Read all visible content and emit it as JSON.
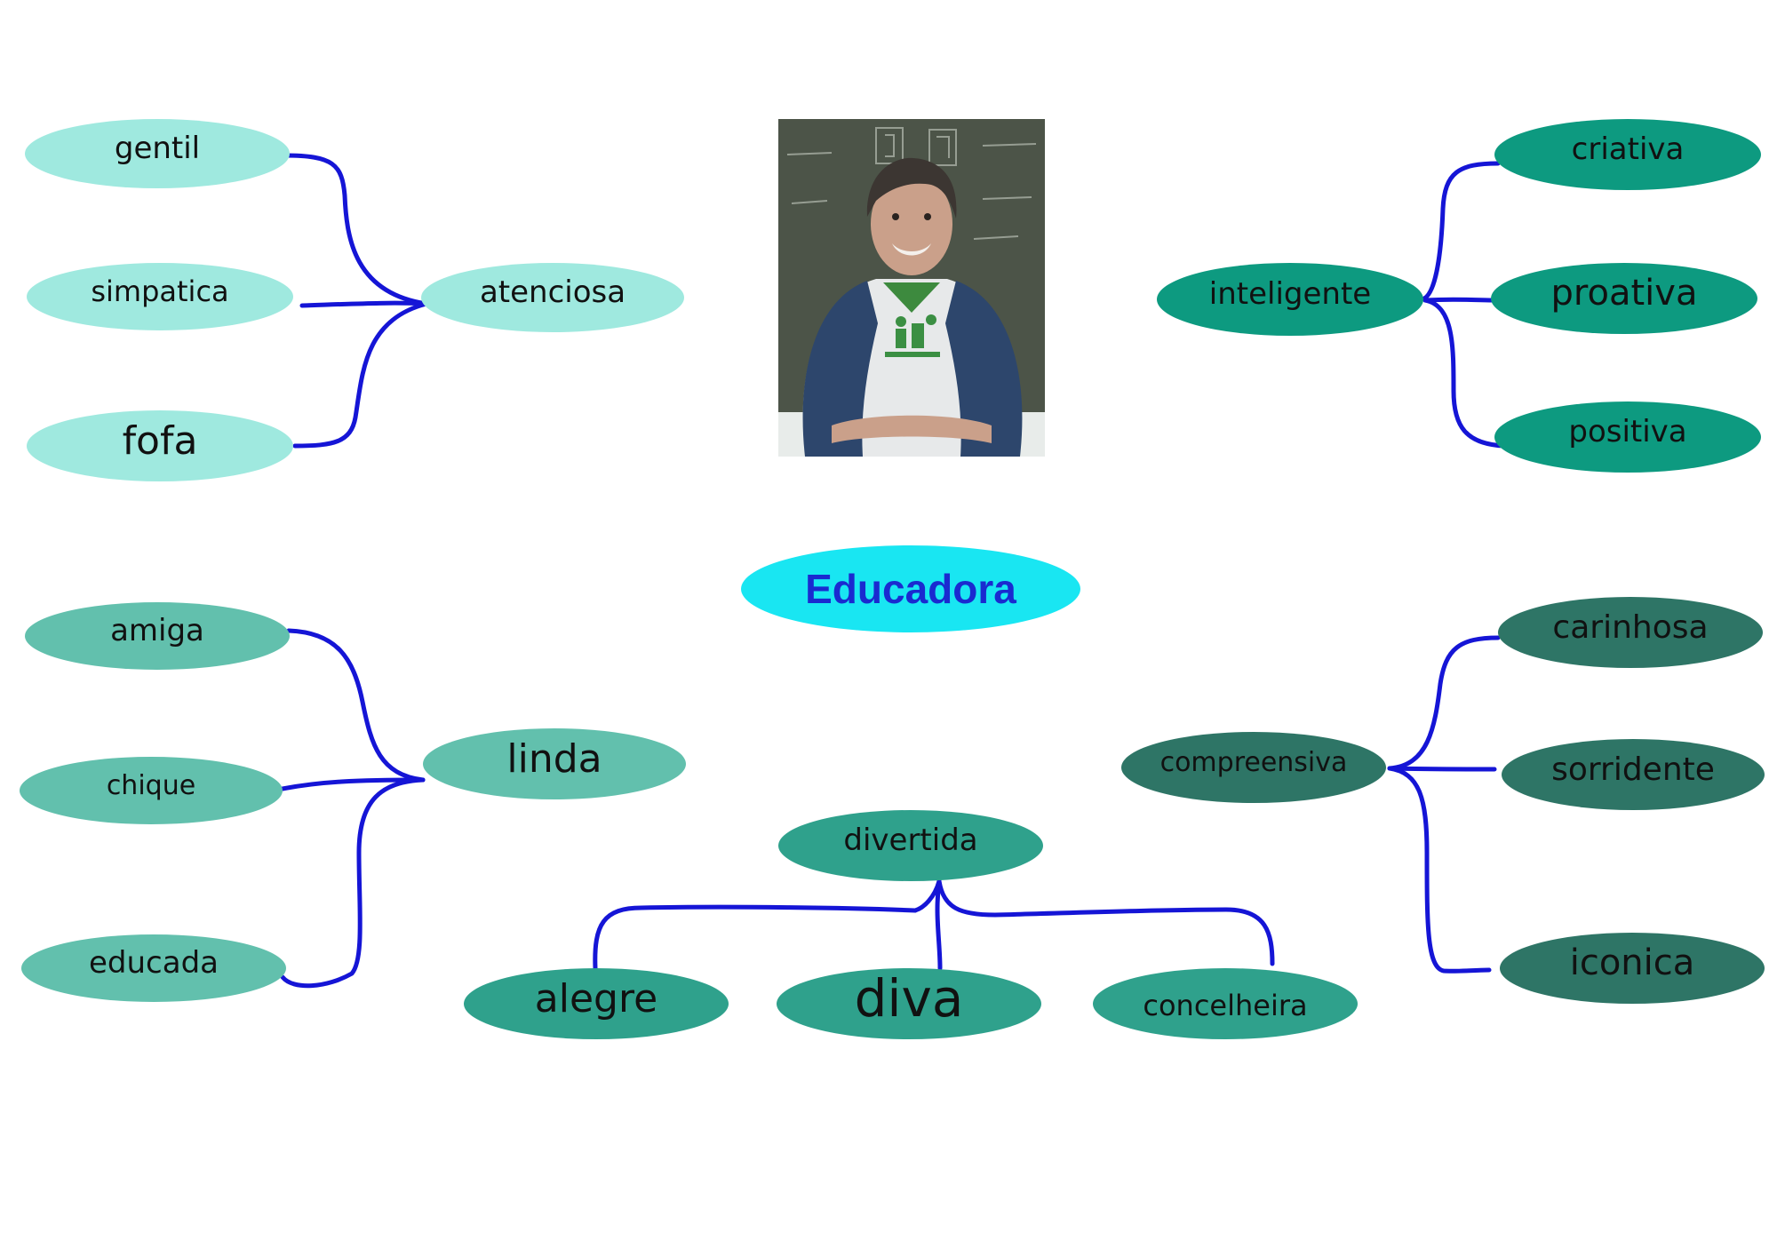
{
  "colors": {
    "connector": "#1515d6",
    "center_fill": "#19e6f2",
    "center_text": "#1a2ad0",
    "group_top_left": "#9fe9df",
    "group_top_right": "#0d9a80",
    "group_bottom_left": "#62c0ad",
    "group_bottom_center": "#2fa18c",
    "group_bottom_right": "#2e7566"
  },
  "center": {
    "label": "Educadora"
  },
  "photo": {
    "icon": "educator-portrait"
  },
  "groups": {
    "top_left": {
      "hub": "atenciosa",
      "leaves": [
        "gentil",
        "simpatica",
        "fofa"
      ]
    },
    "top_right": {
      "hub": "inteligente",
      "leaves": [
        "criativa",
        "proativa",
        "positiva"
      ]
    },
    "bottom_left": {
      "hub": "linda",
      "leaves": [
        "amiga",
        "chique",
        "educada"
      ]
    },
    "bottom_center": {
      "hub": "divertida",
      "leaves": [
        "alegre",
        "diva",
        "concelheira"
      ]
    },
    "bottom_right": {
      "hub": "compreensiva",
      "leaves": [
        "carinhosa",
        "sorridente",
        "iconica"
      ]
    }
  }
}
